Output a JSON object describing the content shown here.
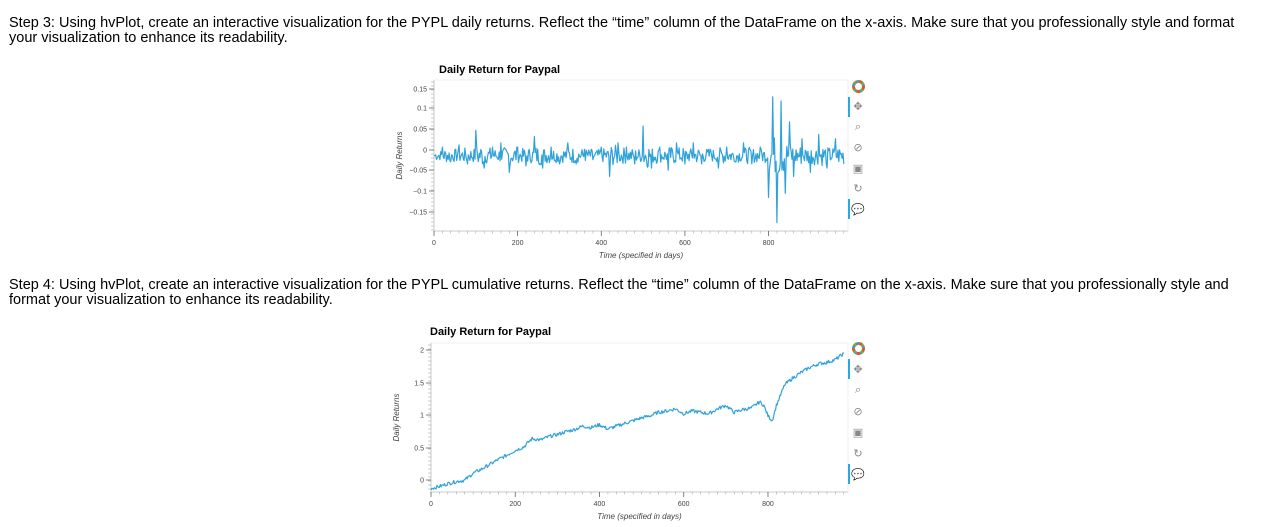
{
  "steps": {
    "step3": "Step 3: Using hvPlot, create an interactive visualization for the PYPL daily returns. Reflect the “time” column of the DataFrame on the x-axis. Make sure that you professionally style and format your visualization to enhance its readability.",
    "step4": "Step 4: Using hvPlot, create an interactive visualization for the PYPL cumulative returns. Reflect the “time” column of the DataFrame on the x-axis. Make sure that you professionally style and format your visualization to enhance its readability."
  },
  "toolbar": {
    "icons": [
      "bokeh-logo-icon",
      "pan-icon",
      "box-zoom-icon",
      "wheel-zoom-icon",
      "save-icon",
      "reset-icon",
      "hover-icon"
    ]
  },
  "colors": {
    "line": "#30a2da",
    "toolbar_active": "#26aae1"
  },
  "chart_data": [
    {
      "type": "line",
      "title": "Daily Return for Paypal",
      "xlabel": "Time (specified in days)",
      "ylabel": "Daily Returns",
      "xlim": [
        0,
        990
      ],
      "ylim": [
        -0.18,
        0.18
      ],
      "xticks": [
        "0",
        "200",
        "400",
        "600",
        "800"
      ],
      "yticks": [
        "0.15",
        "0.1",
        "0.05",
        "0",
        "−0.05",
        "−0.1",
        "−0.15"
      ],
      "x": [
        0,
        20,
        40,
        60,
        80,
        100,
        120,
        140,
        160,
        180,
        200,
        220,
        240,
        260,
        280,
        300,
        320,
        340,
        360,
        380,
        400,
        420,
        440,
        460,
        480,
        500,
        520,
        540,
        560,
        580,
        600,
        620,
        640,
        660,
        680,
        700,
        720,
        740,
        760,
        780,
        800,
        810,
        820,
        830,
        840,
        850,
        860,
        880,
        900,
        920,
        940,
        960,
        980
      ],
      "values": [
        0.0,
        0.02,
        -0.015,
        0.025,
        -0.02,
        0.06,
        -0.03,
        0.02,
        0.03,
        -0.04,
        0.02,
        -0.025,
        0.045,
        -0.03,
        0.02,
        -0.02,
        0.03,
        -0.02,
        0.015,
        -0.01,
        0.02,
        -0.05,
        0.03,
        0.02,
        -0.02,
        0.07,
        -0.03,
        0.02,
        -0.035,
        0.03,
        -0.02,
        0.03,
        -0.02,
        0.015,
        -0.03,
        0.02,
        -0.015,
        0.03,
        -0.02,
        0.02,
        -0.1,
        0.14,
        -0.16,
        0.13,
        -0.09,
        0.08,
        -0.05,
        0.04,
        -0.04,
        0.05,
        -0.03,
        0.04,
        -0.02
      ],
      "series": [
        {
          "name": "Daily Returns"
        }
      ]
    },
    {
      "type": "line",
      "title": "Daily Return for Paypal",
      "xlabel": "Time (specified in days)",
      "ylabel": "Daily Returns",
      "xlim": [
        0,
        990
      ],
      "ylim": [
        -0.05,
        2.1
      ],
      "xticks": [
        "0",
        "200",
        "400",
        "600",
        "800"
      ],
      "yticks": [
        "2",
        "1.5",
        "1",
        "0.5",
        "0"
      ],
      "x": [
        0,
        20,
        40,
        60,
        80,
        100,
        120,
        140,
        160,
        180,
        200,
        220,
        240,
        260,
        280,
        300,
        320,
        340,
        360,
        380,
        400,
        420,
        440,
        460,
        480,
        500,
        520,
        540,
        560,
        580,
        600,
        620,
        640,
        660,
        680,
        700,
        720,
        740,
        760,
        780,
        790,
        800,
        810,
        820,
        840,
        860,
        880,
        900,
        920,
        940,
        960,
        980
      ],
      "values": [
        0.0,
        0.03,
        0.07,
        0.1,
        0.12,
        0.22,
        0.28,
        0.35,
        0.42,
        0.48,
        0.55,
        0.6,
        0.72,
        0.7,
        0.75,
        0.78,
        0.82,
        0.85,
        0.9,
        0.88,
        0.92,
        0.86,
        0.9,
        0.94,
        0.98,
        1.02,
        1.05,
        1.1,
        1.12,
        1.15,
        1.08,
        1.12,
        1.1,
        1.08,
        1.15,
        1.2,
        1.1,
        1.14,
        1.16,
        1.25,
        1.2,
        1.05,
        0.98,
        1.2,
        1.5,
        1.6,
        1.68,
        1.75,
        1.8,
        1.82,
        1.86,
        1.95
      ],
      "series": [
        {
          "name": "Daily Returns"
        }
      ]
    }
  ]
}
